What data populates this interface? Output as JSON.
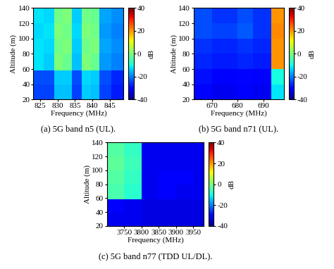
{
  "chart_data": [
    {
      "type": "heatmap",
      "title": "(a) 5G band n5 (UL).",
      "x_label": "Frequency (MHz)",
      "y_label": "Altitude (m)",
      "x_edges": [
        823,
        826,
        829,
        831.5,
        834,
        837,
        839.5,
        842,
        845.5,
        849
      ],
      "y_edges": [
        20,
        40,
        58,
        80,
        100,
        120,
        140
      ],
      "cells": [
        [
          -25,
          -25,
          -15,
          -15,
          -25,
          -14,
          -15,
          -25,
          -28
        ],
        [
          -24,
          -24,
          -14,
          -14,
          -24,
          -13,
          -14,
          -24,
          -27
        ],
        [
          -12,
          -14,
          0,
          -2,
          -15,
          0,
          -2,
          -18,
          -20
        ],
        [
          -12,
          -13,
          -1,
          0,
          -14,
          -1,
          0,
          -17,
          -19
        ],
        [
          -13,
          -12,
          0,
          -1,
          -13,
          0,
          -1,
          -18,
          -20
        ],
        [
          -12,
          -13,
          -1,
          0,
          -14,
          -1,
          -2,
          -17,
          -19
        ]
      ],
      "xlim": [
        823,
        849
      ],
      "xticks": [
        825,
        830,
        835,
        840,
        845
      ],
      "ylim": [
        20,
        140
      ],
      "yticks": [
        20,
        40,
        60,
        80,
        100,
        120,
        140
      ],
      "colorbar": {
        "range": [
          -40,
          40
        ],
        "ticks": [
          -40,
          -20,
          0,
          20,
          40
        ],
        "label": "dB"
      }
    },
    {
      "type": "heatmap",
      "title": "(b) 5G band n71 (UL).",
      "x_label": "Frequency (MHz)",
      "y_label": "Altitude (m)",
      "x_edges": [
        663,
        670,
        680,
        686,
        693,
        698
      ],
      "y_edges": [
        20,
        40,
        60,
        80,
        100,
        120,
        140
      ],
      "cells": [
        [
          -30,
          -32,
          -31,
          -32,
          -12
        ],
        [
          -29,
          -31,
          -30,
          -31,
          -10
        ],
        [
          -27,
          -28,
          -27,
          -28,
          20
        ],
        [
          -26,
          -27,
          -26,
          -27,
          20
        ],
        [
          -24,
          -25,
          -23,
          -26,
          21
        ],
        [
          -24,
          -26,
          -24,
          -26,
          20
        ]
      ],
      "xlim": [
        663,
        698
      ],
      "xticks": [
        670,
        680,
        690
      ],
      "ylim": [
        20,
        140
      ],
      "yticks": [
        20,
        40,
        60,
        80,
        100,
        120,
        140
      ],
      "colorbar": {
        "range": [
          -40,
          40
        ],
        "ticks": [
          -40,
          -20,
          0,
          20,
          40
        ],
        "label": "dB"
      }
    },
    {
      "type": "heatmap",
      "title": "(c) 5G band n77 (TDD UL/DL).",
      "x_label": "Frequency (MHz)",
      "y_label": "Altitude (m)",
      "x_edges": [
        3700,
        3750,
        3800,
        3850,
        3900,
        3950,
        3980
      ],
      "y_edges": [
        20,
        40,
        58,
        80,
        100,
        120,
        140
      ],
      "cells": [
        [
          -32,
          -32,
          -33,
          -33,
          -33,
          -33
        ],
        [
          -31,
          -32,
          -33,
          -33,
          -33,
          -33
        ],
        [
          -5,
          -8,
          -32,
          -31,
          -32,
          -32
        ],
        [
          -4,
          -7,
          -32,
          -31,
          -31,
          -32
        ],
        [
          -3,
          -6,
          -32,
          -32,
          -32,
          -32
        ],
        [
          -4,
          -7,
          -32,
          -32,
          -32,
          -32
        ]
      ],
      "xlim": [
        3700,
        3980
      ],
      "xticks": [
        3750,
        3800,
        3850,
        3900,
        3950
      ],
      "ylim": [
        20,
        140
      ],
      "yticks": [
        20,
        40,
        60,
        80,
        100,
        120,
        140
      ],
      "colorbar": {
        "range": [
          -40,
          40
        ],
        "ticks": [
          -40,
          -20,
          0,
          20,
          40
        ],
        "label": "dB"
      }
    }
  ]
}
